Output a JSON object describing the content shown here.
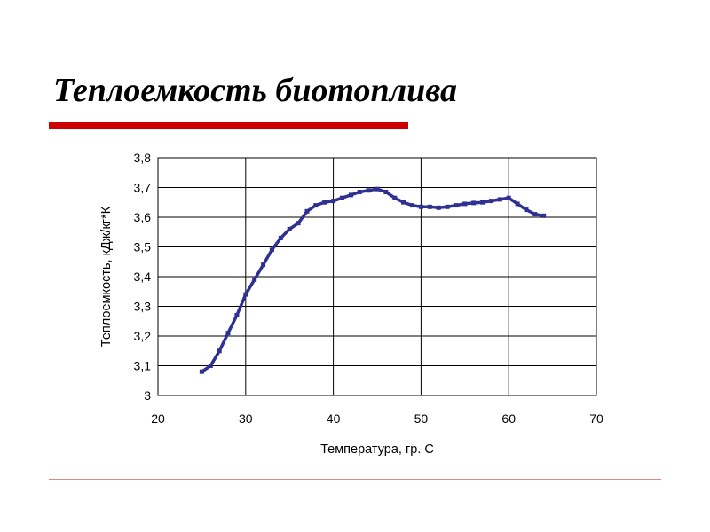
{
  "slide": {
    "title": "Теплоемкость биотоплива"
  },
  "chart_data": {
    "type": "line",
    "title": "",
    "xlabel": "Температура, гр. С",
    "ylabel": "Теплоемкость, кДж/кг*К",
    "xlim": [
      20,
      70
    ],
    "ylim": [
      3,
      3.8
    ],
    "x_ticks": [
      "20",
      "30",
      "40",
      "50",
      "60",
      "70"
    ],
    "y_ticks": [
      "3",
      "3,1",
      "3,2",
      "3,3",
      "3,4",
      "3,5",
      "3,6",
      "3,7",
      "3,8"
    ],
    "grid": true,
    "legend": "none",
    "colors": {
      "series": "#2e3192"
    },
    "series": [
      {
        "x": [
          25,
          26,
          27,
          28,
          29,
          30,
          31,
          32,
          33,
          34,
          35,
          36,
          37,
          38,
          39,
          40,
          41,
          42,
          43,
          44,
          45,
          46,
          47,
          48,
          49,
          50,
          51,
          52,
          53,
          54,
          55,
          56,
          57,
          58,
          59,
          60,
          61,
          62,
          63,
          64
        ],
        "y": [
          3.08,
          3.1,
          3.15,
          3.21,
          3.27,
          3.34,
          3.39,
          3.44,
          3.49,
          3.53,
          3.56,
          3.58,
          3.62,
          3.64,
          3.65,
          3.655,
          3.665,
          3.675,
          3.685,
          3.69,
          3.695,
          3.685,
          3.665,
          3.65,
          3.64,
          3.635,
          3.635,
          3.632,
          3.635,
          3.64,
          3.645,
          3.648,
          3.65,
          3.655,
          3.66,
          3.665,
          3.645,
          3.625,
          3.61,
          3.605
        ]
      }
    ]
  }
}
